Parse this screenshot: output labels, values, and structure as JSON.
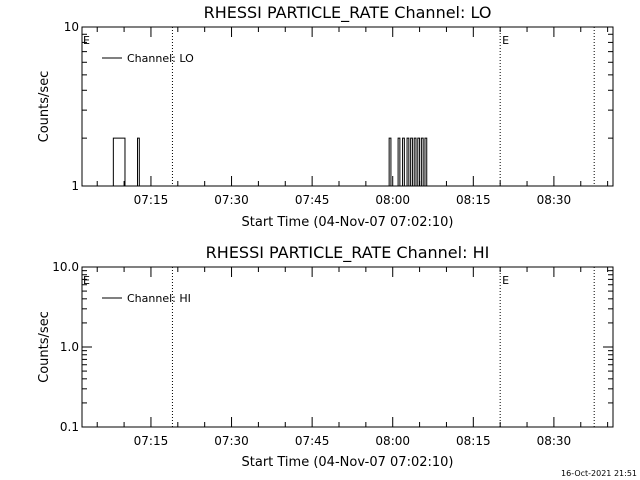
{
  "chart_data": [
    {
      "type": "line",
      "title": "RHESSI PARTICLE_RATE Channel: LO",
      "xlabel": "Start Time (04-Nov-07 07:02:10)",
      "ylabel": "Counts/sec",
      "y_scale": "log",
      "ylim": [
        1,
        10
      ],
      "y_ticks": [
        {
          "value": 1,
          "label": "1"
        },
        {
          "value": 10,
          "label": "10"
        }
      ],
      "xlim": [
        "07:02:10",
        "08:41:00"
      ],
      "x_ticks": [
        "07:15",
        "07:30",
        "07:45",
        "08:00",
        "08:15",
        "08:30"
      ],
      "legend": {
        "entry": "Channel: LO",
        "placement": "top-left"
      },
      "event_lines": [
        {
          "time": "07:19:00",
          "label": ""
        },
        {
          "time": "08:20:00",
          "label": "E"
        },
        {
          "time": "08:37:30",
          "label": ""
        }
      ],
      "start_marker": "E",
      "series": [
        {
          "name": "Channel: LO",
          "points": [
            [
              "07:07:00",
              1
            ],
            [
              "07:07:40",
              1
            ],
            [
              "07:08:00",
              2
            ],
            [
              "07:09:50",
              2
            ],
            [
              "07:10:10",
              1
            ],
            [
              "07:12:10",
              1
            ],
            [
              "07:12:30",
              2
            ],
            [
              "07:12:50",
              1
            ],
            [
              "07:17:00",
              1
            ],
            [
              "07:59:00",
              1
            ],
            [
              "07:59:20",
              2
            ],
            [
              "07:59:40",
              1
            ],
            [
              "08:00:40",
              1
            ],
            [
              "08:01:00",
              2
            ],
            [
              "08:01:20",
              1
            ],
            [
              "08:01:50",
              2
            ],
            [
              "08:02:10",
              1
            ],
            [
              "08:02:40",
              2
            ],
            [
              "08:03:00",
              1
            ],
            [
              "08:03:20",
              2
            ],
            [
              "08:03:40",
              1
            ],
            [
              "08:04:00",
              2
            ],
            [
              "08:04:20",
              1
            ],
            [
              "08:04:40",
              2
            ],
            [
              "08:05:00",
              1
            ],
            [
              "08:05:20",
              2
            ],
            [
              "08:05:40",
              1
            ],
            [
              "08:06:00",
              2
            ],
            [
              "08:06:20",
              1
            ],
            [
              "08:06:40",
              1
            ]
          ]
        }
      ]
    },
    {
      "type": "line",
      "title": "RHESSI PARTICLE_RATE Channel: HI",
      "xlabel": "Start Time (04-Nov-07 07:02:10)",
      "ylabel": "Counts/sec",
      "y_scale": "log",
      "ylim": [
        0.1,
        10
      ],
      "y_ticks": [
        {
          "value": 0.1,
          "label": "0.1"
        },
        {
          "value": 1,
          "label": "1.0"
        },
        {
          "value": 10,
          "label": "10.0"
        }
      ],
      "xlim": [
        "07:02:10",
        "08:41:00"
      ],
      "x_ticks": [
        "07:15",
        "07:30",
        "07:45",
        "08:00",
        "08:15",
        "08:30"
      ],
      "legend": {
        "entry": "Channel: HI",
        "placement": "top-left"
      },
      "event_lines": [
        {
          "time": "07:19:00",
          "label": ""
        },
        {
          "time": "08:20:00",
          "label": "E"
        },
        {
          "time": "08:37:30",
          "label": ""
        }
      ],
      "start_marker": "E",
      "series": [
        {
          "name": "Channel: HI",
          "points": []
        }
      ]
    }
  ],
  "footer": {
    "timestamp": "16-Oct-2021 21:51"
  }
}
